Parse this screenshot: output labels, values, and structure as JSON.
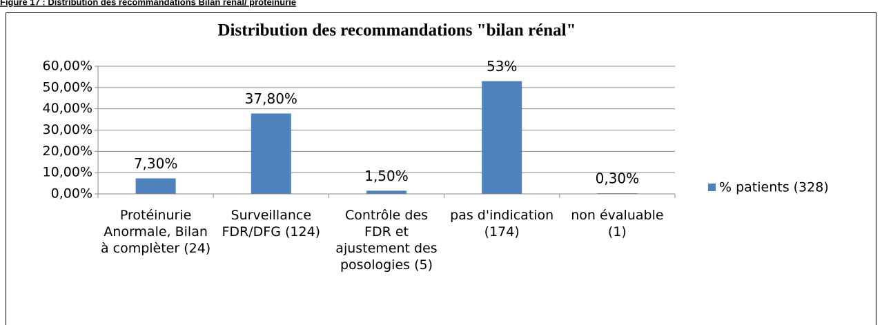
{
  "caption": "Figure 17 : Distribution des recommandations Bilan rénal/ protéinurie",
  "chart_data": {
    "type": "bar",
    "title": "Distribution des recommandations \"bilan rénal\"",
    "categories": [
      "Protéinurie Anormale, Bilan à complèter (24)",
      "Surveillance FDR/DFG (124)",
      "Contrôle des FDR et ajustement des posologies (5)",
      "pas d'indication (174)",
      "non évaluable (1)"
    ],
    "series": [
      {
        "name": "% patients (328)",
        "color": "#4f81bd",
        "values": [
          7.3,
          37.8,
          1.5,
          53,
          0.3
        ],
        "value_labels": [
          "7,30%",
          "37,80%",
          "1,50%",
          "53%",
          "0,30%"
        ]
      }
    ],
    "ylim": [
      0,
      60
    ],
    "yticks": [
      {
        "value": 0,
        "label": "0,00%"
      },
      {
        "value": 10,
        "label": "10,00%"
      },
      {
        "value": 20,
        "label": "20,00%"
      },
      {
        "value": 30,
        "label": "30,00%"
      },
      {
        "value": 40,
        "label": "40,00%"
      },
      {
        "value": 50,
        "label": "50,00%"
      },
      {
        "value": 60,
        "label": "60,00%"
      }
    ],
    "grid": true,
    "legend": "right"
  }
}
